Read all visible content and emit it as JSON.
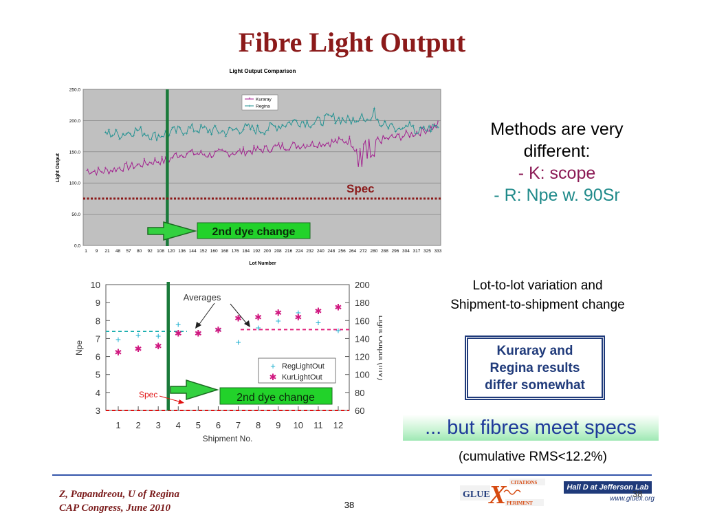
{
  "slide": {
    "title": "Fibre Light Output",
    "methods": {
      "line1": "Methods are very",
      "line2": "different:",
      "k": "- K: scope",
      "r": "- R: Npe w. 90Sr"
    },
    "variation": {
      "line1": "Lot-to-lot variation and",
      "line2": "Shipment-to-shipment change"
    },
    "callout": {
      "line1": "Kuraray and",
      "line2": "Regina results",
      "line3": "differ somewhat"
    },
    "banner": "... but fibres meet specs",
    "rms": "(cumulative RMS<12.2%)",
    "footer": {
      "author_line1": "Z, Papandreou, U of Regina",
      "author_line2": "CAP Congress, June 2010",
      "page": "38",
      "logo_glue": "GLUE",
      "logo_x": "X",
      "logo_citations": "CITATIONS",
      "logo_periment": "PERIMENT",
      "halld": "Hall D at Jefferson Lab",
      "halld_url": "www.gluex.org",
      "logo_page": "38"
    }
  },
  "colors": {
    "title": "#8b1a1a",
    "kuraray": "#a0178c",
    "regina": "#1c9090",
    "spec_line": "#8b1a1a",
    "dye_line": "#1a7a3a",
    "banner_text": "#1f3a9a"
  },
  "chart_data": [
    {
      "type": "line",
      "title": "Light Output Comparison",
      "xlabel": "Lot Number",
      "ylabel": "Light Output",
      "ylim": [
        0,
        250
      ],
      "yticks": [
        "0.0",
        "50.0",
        "100.0",
        "150.0",
        "200.0",
        "250.0"
      ],
      "xticks": [
        "1",
        "9",
        "21",
        "48",
        "57",
        "80",
        "92",
        "108",
        "120",
        "136",
        "144",
        "152",
        "160",
        "168",
        "176",
        "184",
        "192",
        "200",
        "208",
        "216",
        "224",
        "232",
        "240",
        "248",
        "256",
        "264",
        "272",
        "280",
        "288",
        "296",
        "304",
        "317",
        "325",
        "333"
      ],
      "grid": true,
      "legend": "top-left",
      "x_index_range": [
        1,
        200
      ],
      "series": [
        {
          "name": "Kuraray",
          "marker": "star",
          "keypoints": [
            [
              1,
              120
            ],
            [
              10,
              118
            ],
            [
              20,
              124
            ],
            [
              30,
              128
            ],
            [
              40,
              135
            ],
            [
              47,
              135
            ],
            [
              52,
              145
            ],
            [
              60,
              148
            ],
            [
              70,
              145
            ],
            [
              80,
              148
            ],
            [
              90,
              150
            ],
            [
              100,
              153
            ],
            [
              110,
              158
            ],
            [
              120,
              160
            ],
            [
              130,
              163
            ],
            [
              140,
              165
            ],
            [
              150,
              168
            ],
            [
              155,
              150
            ],
            [
              160,
              165
            ],
            [
              170,
              170
            ],
            [
              180,
              175
            ],
            [
              190,
              182
            ],
            [
              200,
              192
            ]
          ]
        },
        {
          "name": "Regina",
          "marker": "plus",
          "keypoints": [
            [
              12,
              180
            ],
            [
              20,
              178
            ],
            [
              30,
              185
            ],
            [
              40,
              175
            ],
            [
              50,
              182
            ],
            [
              60,
              187
            ],
            [
              70,
              185
            ],
            [
              80,
              182
            ],
            [
              90,
              188
            ],
            [
              100,
              185
            ],
            [
              110,
              192
            ],
            [
              120,
              200
            ],
            [
              130,
              196
            ],
            [
              140,
              205
            ],
            [
              150,
              200
            ],
            [
              160,
              205
            ],
            [
              170,
              193
            ],
            [
              180,
              188
            ],
            [
              190,
              182
            ],
            [
              200,
              192
            ]
          ]
        }
      ],
      "annotations": {
        "spec_label": "Spec",
        "spec_value": 75,
        "dye_change_label": "2nd dye change",
        "dye_change_lot_index": 47
      }
    },
    {
      "type": "scatter",
      "xlabel": "Shipment No.",
      "ylabel_left": "Npe",
      "ylabel_right": "Light Output (mV)",
      "x": [
        1,
        2,
        3,
        4,
        5,
        6,
        7,
        8,
        9,
        10,
        11,
        12
      ],
      "xticks": [
        "1",
        "2",
        "3",
        "4",
        "5",
        "6",
        "7",
        "8",
        "9",
        "10",
        "11",
        "12"
      ],
      "ylim_left": [
        3,
        10
      ],
      "yticks_left": [
        "3",
        "4",
        "5",
        "6",
        "7",
        "8",
        "9",
        "10"
      ],
      "ylim_right": [
        60,
        200
      ],
      "yticks_right": [
        "60",
        "80",
        "100",
        "120",
        "140",
        "160",
        "180",
        "200"
      ],
      "legend": "center-right",
      "series": [
        {
          "name": "RegLightOut",
          "marker": "plus",
          "axis": "right",
          "values": [
            139,
            144,
            143,
            156,
            147,
            150,
            136,
            152,
            160,
            169,
            158,
            149
          ]
        },
        {
          "name": "KurLightOut",
          "marker": "star",
          "axis": "right",
          "values": [
            125,
            129,
            132,
            146,
            146,
            150,
            163,
            164,
            169,
            164,
            171,
            175
          ]
        }
      ],
      "annotations": {
        "averages_label": "Averages",
        "average_before": 148,
        "average_after": 150,
        "spec_label": "Spec",
        "spec_value": 60,
        "dye_change_label": "2nd dye change",
        "dye_change_x": 3.5
      }
    }
  ]
}
